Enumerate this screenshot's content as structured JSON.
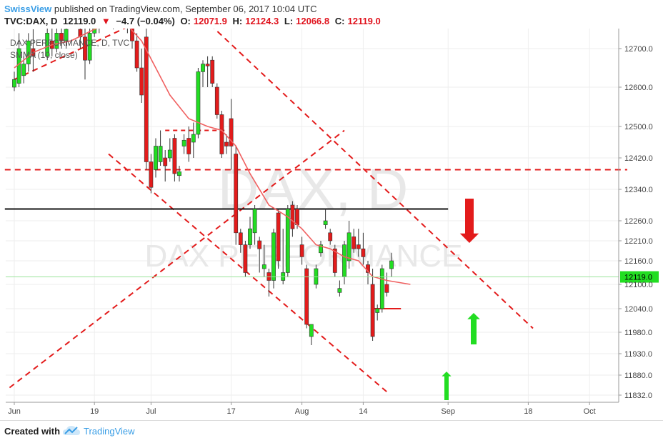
{
  "header": {
    "author": "SwissView",
    "published": "published on TradingView.com, September 06, 2017 10:04 UTC",
    "symbol": "TVC:DAX, D",
    "last": "12119.0",
    "change_arrow": "▼",
    "change": "−4.7 (−0.04%)",
    "o_label": "O:",
    "o_val": "12071.9",
    "h_label": "H:",
    "h_val": "12124.3",
    "l_label": "L:",
    "l_val": "12066.8",
    "c_label": "C:",
    "c_val": "12119.0"
  },
  "legend": {
    "line1": "DAX PERFORMANCE, D, TVC",
    "line2": "SMMA (10, close)"
  },
  "watermark": {
    "big": "DAX, D",
    "small": "DAX PERFORMANCE"
  },
  "price_tag": "12119.0",
  "footer": {
    "created": "Created with",
    "brand": "TradingView"
  },
  "colors": {
    "up": "#22dd22",
    "down": "#e31b1b",
    "smma": "#f06060",
    "trend": "#e31b1b",
    "support": "#111111",
    "accent": "#3a9ee6"
  },
  "chart_data": {
    "type": "candlestick",
    "y_ticks": [
      "12700.0",
      "12600.0",
      "12500.0",
      "12420.0",
      "12340.0",
      "12260.0",
      "12210.0",
      "12160.0",
      "12100.0",
      "12040.0",
      "11980.0",
      "11930.0",
      "11880.0",
      "11832.0"
    ],
    "x_ticks": [
      {
        "label": "Jun",
        "day": 0
      },
      {
        "label": "19",
        "day": 17
      },
      {
        "label": "Jul",
        "day": 29
      },
      {
        "label": "17",
        "day": 46
      },
      {
        "label": "Aug",
        "day": 61
      },
      {
        "label": "14",
        "day": 74
      },
      {
        "label": "Sep",
        "day": 92
      },
      {
        "label": "18",
        "day": 109
      },
      {
        "label": "Oct",
        "day": 122
      }
    ],
    "candles": [
      {
        "d": 0,
        "o": 12600,
        "h": 12640,
        "l": 12590,
        "c": 12620
      },
      {
        "d": 1,
        "o": 12610,
        "h": 12740,
        "l": 12600,
        "c": 12700
      },
      {
        "d": 2,
        "o": 12630,
        "h": 12680,
        "l": 12610,
        "c": 12660
      },
      {
        "d": 3,
        "o": 12660,
        "h": 12740,
        "l": 12640,
        "c": 12720
      },
      {
        "d": 4,
        "o": 12700,
        "h": 12750,
        "l": 12640,
        "c": 12680
      },
      {
        "d": 7,
        "o": 12680,
        "h": 12760,
        "l": 12670,
        "c": 12740
      },
      {
        "d": 8,
        "o": 12720,
        "h": 12760,
        "l": 12680,
        "c": 12700
      },
      {
        "d": 9,
        "o": 12700,
        "h": 12760,
        "l": 12690,
        "c": 12740
      },
      {
        "d": 10,
        "o": 12740,
        "h": 12770,
        "l": 12700,
        "c": 12720
      },
      {
        "d": 11,
        "o": 12720,
        "h": 12760,
        "l": 12700,
        "c": 12750
      },
      {
        "d": 14,
        "o": 12750,
        "h": 12790,
        "l": 12700,
        "c": 12730
      },
      {
        "d": 15,
        "o": 12730,
        "h": 12760,
        "l": 12620,
        "c": 12670
      },
      {
        "d": 16,
        "o": 12670,
        "h": 12760,
        "l": 12660,
        "c": 12740
      },
      {
        "d": 17,
        "o": 12740,
        "h": 12790,
        "l": 12730,
        "c": 12770
      },
      {
        "d": 18,
        "o": 12770,
        "h": 12800,
        "l": 12740,
        "c": 12760
      },
      {
        "d": 21,
        "o": 12760,
        "h": 12810,
        "l": 12750,
        "c": 12780
      },
      {
        "d": 22,
        "o": 12780,
        "h": 12820,
        "l": 12760,
        "c": 12800
      },
      {
        "d": 23,
        "o": 12800,
        "h": 12830,
        "l": 12760,
        "c": 12770
      },
      {
        "d": 24,
        "o": 12770,
        "h": 12790,
        "l": 12740,
        "c": 12760
      },
      {
        "d": 25,
        "o": 12760,
        "h": 12780,
        "l": 12700,
        "c": 12720
      },
      {
        "d": 26,
        "o": 12720,
        "h": 12740,
        "l": 12640,
        "c": 12650
      },
      {
        "d": 27,
        "o": 12650,
        "h": 12700,
        "l": 12560,
        "c": 12580
      },
      {
        "d": 28,
        "o": 12730,
        "h": 12760,
        "l": 12390,
        "c": 12410
      },
      {
        "d": 29,
        "o": 12410,
        "h": 12430,
        "l": 12330,
        "c": 12345
      },
      {
        "d": 30,
        "o": 12390,
        "h": 12470,
        "l": 12370,
        "c": 12450
      },
      {
        "d": 31,
        "o": 12410,
        "h": 12490,
        "l": 12400,
        "c": 12450
      },
      {
        "d": 32,
        "o": 12420,
        "h": 12440,
        "l": 12360,
        "c": 12400
      },
      {
        "d": 33,
        "o": 12420,
        "h": 12470,
        "l": 12410,
        "c": 12440
      },
      {
        "d": 34,
        "o": 12470,
        "h": 12480,
        "l": 12360,
        "c": 12380
      },
      {
        "d": 35,
        "o": 12375,
        "h": 12400,
        "l": 12360,
        "c": 12385
      },
      {
        "d": 36,
        "o": 12450,
        "h": 12480,
        "l": 12430,
        "c": 12465
      },
      {
        "d": 37,
        "o": 12470,
        "h": 12500,
        "l": 12410,
        "c": 12430
      },
      {
        "d": 38,
        "o": 12460,
        "h": 12510,
        "l": 12420,
        "c": 12480
      },
      {
        "d": 39,
        "o": 12480,
        "h": 12650,
        "l": 12470,
        "c": 12640
      },
      {
        "d": 40,
        "o": 12640,
        "h": 12670,
        "l": 12600,
        "c": 12660
      },
      {
        "d": 41,
        "o": 12660,
        "h": 12680,
        "l": 12600,
        "c": 12655
      },
      {
        "d": 42,
        "o": 12670,
        "h": 12680,
        "l": 12600,
        "c": 12610
      },
      {
        "d": 43,
        "o": 12600,
        "h": 12610,
        "l": 12520,
        "c": 12530
      },
      {
        "d": 44,
        "o": 12530,
        "h": 12540,
        "l": 12420,
        "c": 12430
      },
      {
        "d": 45,
        "o": 12460,
        "h": 12480,
        "l": 12430,
        "c": 12450
      },
      {
        "d": 46,
        "o": 12520,
        "h": 12570,
        "l": 12390,
        "c": 12450
      },
      {
        "d": 47,
        "o": 12430,
        "h": 12450,
        "l": 12200,
        "c": 12230
      },
      {
        "d": 48,
        "o": 12230,
        "h": 12240,
        "l": 12180,
        "c": 12200
      },
      {
        "d": 49,
        "o": 12200,
        "h": 12210,
        "l": 12120,
        "c": 12130
      },
      {
        "d": 50,
        "o": 12200,
        "h": 12270,
        "l": 12190,
        "c": 12240
      },
      {
        "d": 51,
        "o": 12230,
        "h": 12300,
        "l": 12200,
        "c": 12290
      },
      {
        "d": 52,
        "o": 12210,
        "h": 12220,
        "l": 12130,
        "c": 12190
      },
      {
        "d": 53,
        "o": 12140,
        "h": 12200,
        "l": 12120,
        "c": 12150
      },
      {
        "d": 54,
        "o": 12130,
        "h": 12140,
        "l": 12070,
        "c": 12110
      },
      {
        "d": 55,
        "o": 12110,
        "h": 12240,
        "l": 12090,
        "c": 12230
      },
      {
        "d": 56,
        "o": 12280,
        "h": 12290,
        "l": 12140,
        "c": 12160
      },
      {
        "d": 57,
        "o": 12110,
        "h": 12240,
        "l": 12100,
        "c": 12130
      },
      {
        "d": 58,
        "o": 12130,
        "h": 12300,
        "l": 12120,
        "c": 12290
      },
      {
        "d": 59,
        "o": 12300,
        "h": 12310,
        "l": 12220,
        "c": 12240
      },
      {
        "d": 60,
        "o": 12290,
        "h": 12300,
        "l": 12240,
        "c": 12250
      },
      {
        "d": 61,
        "o": 12200,
        "h": 12220,
        "l": 12150,
        "c": 12170
      },
      {
        "d": 62,
        "o": 12140,
        "h": 12150,
        "l": 11990,
        "c": 12000
      },
      {
        "d": 63,
        "o": 11970,
        "h": 12000,
        "l": 11950,
        "c": 12000
      },
      {
        "d": 64,
        "o": 12100,
        "h": 12150,
        "l": 12090,
        "c": 12140
      },
      {
        "d": 65,
        "o": 12180,
        "h": 12210,
        "l": 12170,
        "c": 12200
      },
      {
        "d": 66,
        "o": 12250,
        "h": 12290,
        "l": 12240,
        "c": 12260
      },
      {
        "d": 67,
        "o": 12230,
        "h": 12240,
        "l": 12200,
        "c": 12210
      },
      {
        "d": 68,
        "o": 12190,
        "h": 12200,
        "l": 12120,
        "c": 12130
      },
      {
        "d": 69,
        "o": 12080,
        "h": 12110,
        "l": 12070,
        "c": 12090
      },
      {
        "d": 70,
        "o": 12120,
        "h": 12210,
        "l": 12100,
        "c": 12200
      },
      {
        "d": 71,
        "o": 12160,
        "h": 12260,
        "l": 12140,
        "c": 12230
      },
      {
        "d": 72,
        "o": 12220,
        "h": 12240,
        "l": 12180,
        "c": 12190
      },
      {
        "d": 73,
        "o": 12200,
        "h": 12240,
        "l": 12170,
        "c": 12190
      },
      {
        "d": 74,
        "o": 12190,
        "h": 12230,
        "l": 12150,
        "c": 12170
      },
      {
        "d": 75,
        "o": 12150,
        "h": 12160,
        "l": 12100,
        "c": 12130
      },
      {
        "d": 76,
        "o": 12100,
        "h": 12140,
        "l": 11960,
        "c": 11970
      },
      {
        "d": 77,
        "o": 12030,
        "h": 12050,
        "l": 12010,
        "c": 12040
      },
      {
        "d": 78,
        "o": 12040,
        "h": 12150,
        "l": 12030,
        "c": 12140
      },
      {
        "d": 79,
        "o": 12100,
        "h": 12130,
        "l": 12070,
        "c": 12080
      },
      {
        "d": 80,
        "o": 12140,
        "h": 12180,
        "l": 12120,
        "c": 12160
      }
    ],
    "smma": [
      [
        0,
        12650
      ],
      [
        4,
        12690
      ],
      [
        8,
        12710
      ],
      [
        12,
        12720
      ],
      [
        17,
        12750
      ],
      [
        21,
        12770
      ],
      [
        24,
        12760
      ],
      [
        27,
        12720
      ],
      [
        30,
        12650
      ],
      [
        33,
        12580
      ],
      [
        37,
        12520
      ],
      [
        41,
        12500
      ],
      [
        44,
        12490
      ],
      [
        47,
        12450
      ],
      [
        50,
        12380
      ],
      [
        54,
        12300
      ],
      [
        58,
        12270
      ],
      [
        61,
        12240
      ],
      [
        64,
        12200
      ],
      [
        67,
        12190
      ],
      [
        70,
        12170
      ],
      [
        73,
        12160
      ],
      [
        76,
        12120
      ],
      [
        79,
        12110
      ],
      [
        84,
        12100
      ]
    ],
    "support_lines": [
      {
        "y": 12390
      },
      {
        "y": 12290
      }
    ],
    "notes": "Dashed red trend channels, red down-arrow and green up-arrows drawn as annotations."
  }
}
